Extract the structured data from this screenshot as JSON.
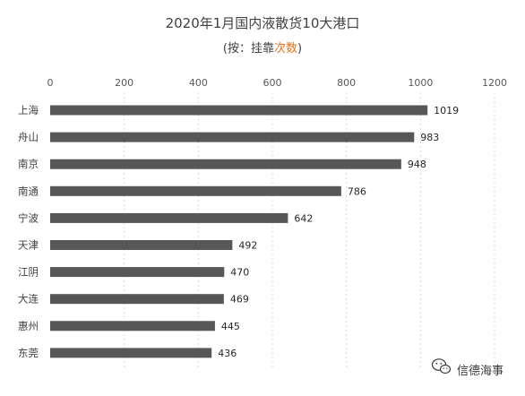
{
  "chart_data": {
    "type": "bar",
    "orientation": "horizontal",
    "title": "2020年1月国内液散货10大港口",
    "subtitle_prefix": "(按：挂靠",
    "subtitle_highlight": "次数",
    "subtitle_suffix": ")",
    "categories": [
      "上海",
      "舟山",
      "南京",
      "南通",
      "宁波",
      "天津",
      "江阴",
      "大连",
      "惠州",
      "东莞"
    ],
    "values": [
      1019,
      983,
      948,
      786,
      642,
      492,
      470,
      469,
      445,
      436
    ],
    "xlim": [
      0,
      1200
    ],
    "xticks": [
      0,
      200,
      400,
      600,
      800,
      1000,
      1200
    ],
    "xaxis_position": "top",
    "grid": true,
    "bar_color": "#575757",
    "highlight_color": "#e8701a"
  },
  "watermark": {
    "text": "信德海事",
    "icon": "wechat-logo-icon"
  }
}
